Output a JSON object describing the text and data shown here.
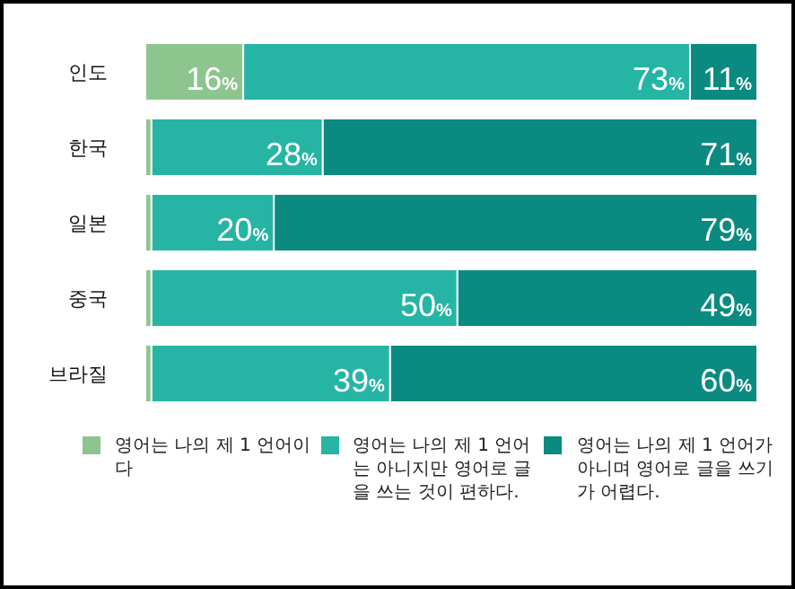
{
  "chart_data": {
    "type": "bar",
    "orientation": "horizontal",
    "stacked": true,
    "legend": "bottom",
    "categories": [
      "인도",
      "한국",
      "일본",
      "중국",
      "브라질"
    ],
    "series": [
      {
        "name": "영어는 나의 제 1 언어이다",
        "color": "#8dc58f",
        "values": [
          16,
          1,
          1,
          1,
          1
        ],
        "value_labels": [
          "16%",
          null,
          null,
          null,
          null
        ]
      },
      {
        "name": "영어는 나의 제 1 언어는 아니지만 영어로 글을 쓰는 것이 편하다.",
        "color": "#26b5a5",
        "values": [
          73,
          28,
          20,
          50,
          39
        ],
        "value_labels": [
          "73%",
          "28%",
          "20%",
          "50%",
          "39%"
        ]
      },
      {
        "name": "영어는 나의 제 1 언어가 아니며 영어로 글을 쓰기가 어렵다.",
        "color": "#0a8a80",
        "values": [
          11,
          71,
          79,
          49,
          60
        ],
        "value_labels": [
          "11%",
          "71%",
          "79%",
          "49%",
          "60%"
        ]
      }
    ]
  }
}
